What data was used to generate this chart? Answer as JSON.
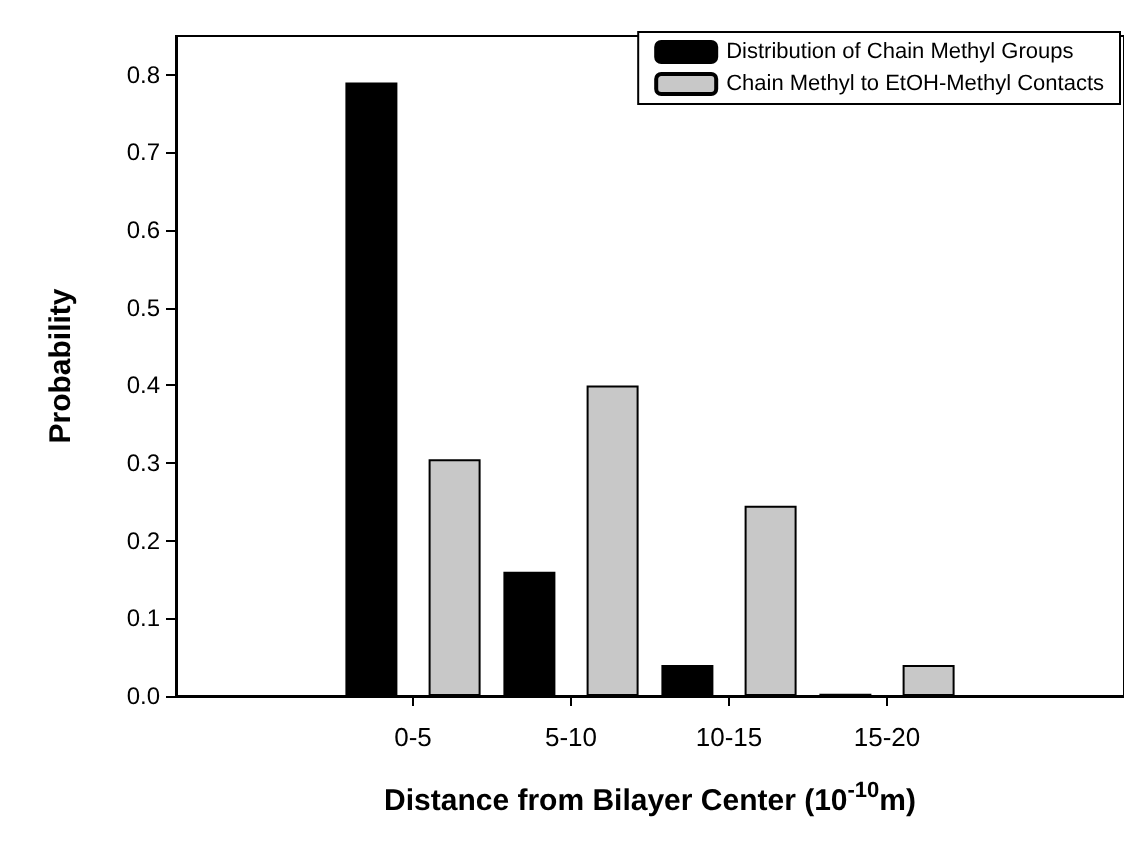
{
  "chart_data": {
    "type": "bar",
    "xlabel": "Distance from Bilayer Center (10$^{-10}$m)",
    "ylabel": "Probability",
    "categories": [
      null,
      "0-5",
      "5-10",
      "10-15",
      "15-20",
      null
    ],
    "series": [
      {
        "name": "Distribution of Chain Methyl Groups",
        "color": "#000000",
        "values": [
          null,
          0.79,
          0.16,
          0.04,
          0.003,
          null
        ]
      },
      {
        "name": "Chain Methyl to EtOH-Methyl Contacts",
        "color": "#c8c8c8",
        "values": [
          null,
          0.305,
          0.4,
          0.245,
          0.04,
          null
        ]
      }
    ],
    "ylim": [
      0,
      0.85
    ],
    "yticks": [
      {
        "value": 0,
        "label": "0.0"
      },
      0.1,
      0.2,
      0.3,
      0.4,
      0.5,
      0.6,
      0.7,
      0.8
    ],
    "grid": false,
    "legend": "top right"
  }
}
